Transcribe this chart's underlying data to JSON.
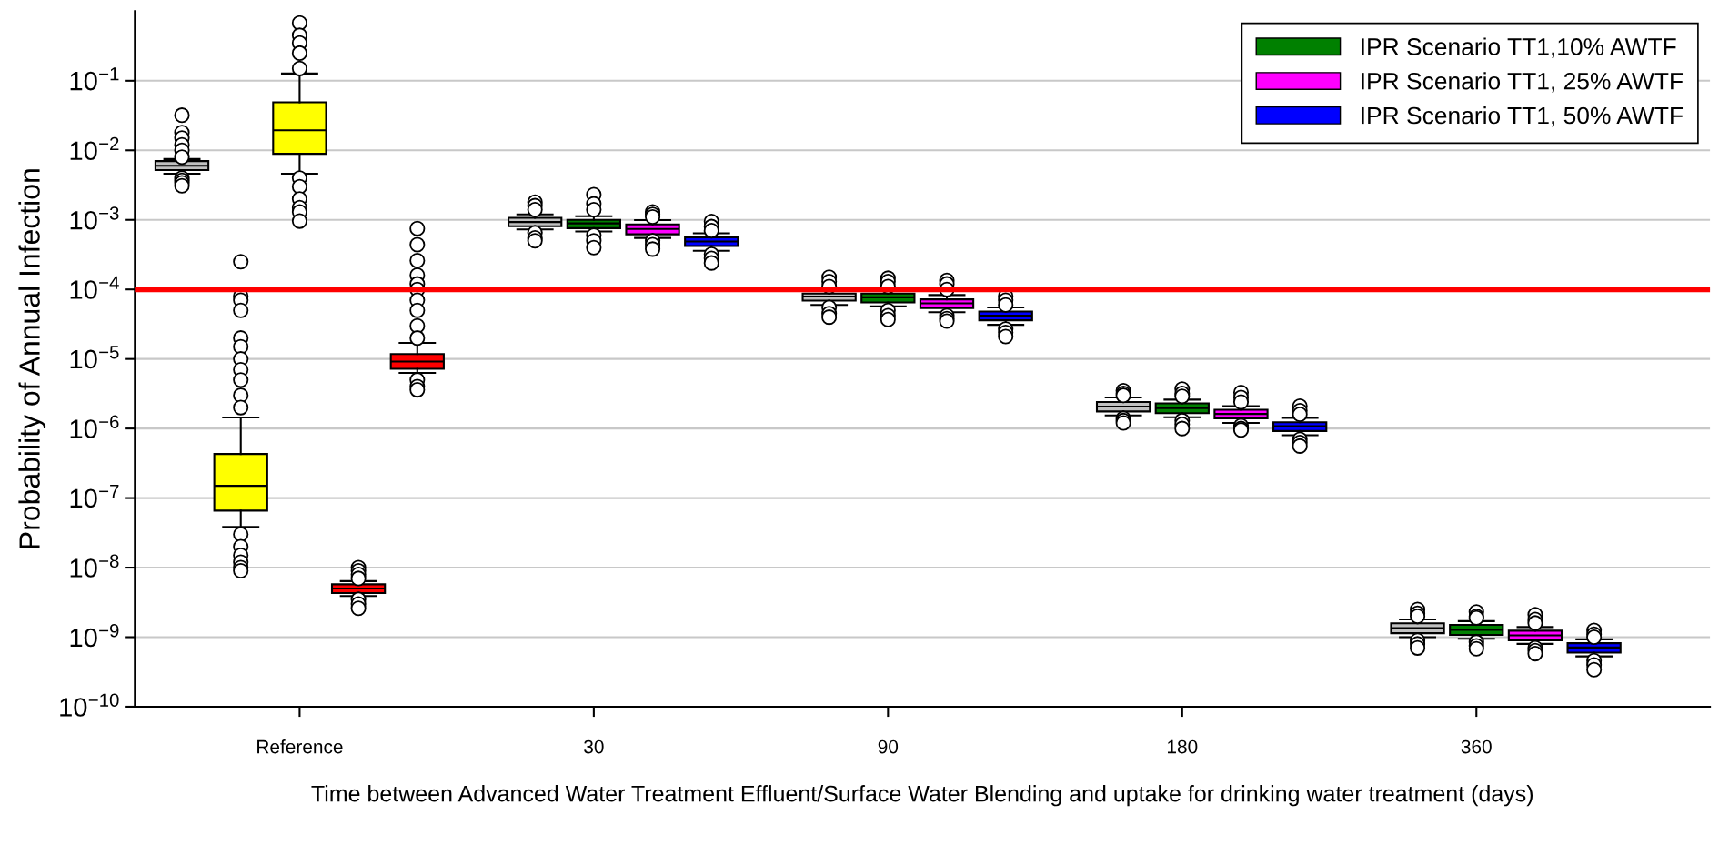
{
  "chart_data": {
    "type": "box",
    "xlabel": "Time between Advanced Water Treatment Effluent/Surface Water Blending and uptake for drinking water treatment (days)",
    "ylabel": "Probability of Annual Infection",
    "categories": [
      null,
      null,
      "Reference",
      null,
      null,
      null,
      null,
      "30",
      null,
      null,
      null,
      null,
      "90",
      null,
      null,
      null,
      null,
      "180",
      null,
      null,
      null,
      null,
      "360",
      null,
      null
    ],
    "log": "y",
    "ylim": [
      1e-10,
      1
    ],
    "yticks": [
      {
        "value": 1e-10,
        "label": "10$^{−10}$"
      },
      {
        "value": 1e-09,
        "label": "10$^{−9}$"
      },
      {
        "value": 1e-08,
        "label": "10$^{−8}$"
      },
      {
        "value": 1e-07,
        "label": "10$^{−7}$"
      },
      {
        "value": 1e-06,
        "label": "10$^{−6}$"
      },
      {
        "value": 1e-05,
        "label": "10$^{−5}$"
      },
      {
        "value": 0.0001,
        "label": "10$^{−4}$"
      },
      {
        "value": 0.001,
        "label": "10$^{−3}$"
      },
      {
        "value": 0.01,
        "label": "10$^{−2}$"
      },
      {
        "value": 0.1,
        "label": "10$^{−1}$"
      }
    ],
    "grid": "y",
    "legend": "top right",
    "ref_lines": [
      {
        "axis": "y",
        "value": 0.0001,
        "color": "#ff0000"
      }
    ],
    "series": [
      {
        "color": "#c0c0c0",
        "boxes": [
          {
            "low": 0.0046,
            "q1": 0.0052,
            "median": 0.006,
            "q3": 0.007,
            "high": 0.0075,
            "outliers": [
              0.032,
              0.018,
              0.015,
              0.012,
              0.01,
              0.008,
              0.004,
              0.0037,
              0.0034,
              0.0031
            ]
          },
          null,
          null,
          null,
          null,
          null,
          {
            "low": 0.00073,
            "q1": 0.00081,
            "median": 0.00093,
            "q3": 0.00107,
            "high": 0.0012,
            "outliers": [
              0.0018,
              0.0016,
              0.0014,
              0.00065,
              0.00055,
              0.0005
            ]
          },
          null,
          null,
          null,
          null,
          {
            "low": 6e-05,
            "q1": 6.9e-05,
            "median": 7.9e-05,
            "q3": 8.7e-05,
            "high": 0.0001,
            "outliers": [
              0.00015,
              0.00013,
              0.00011,
              5.5e-05,
              4.5e-05,
              4e-05
            ]
          },
          null,
          null,
          null,
          null,
          {
            "low": 1.54e-06,
            "q1": 1.76e-06,
            "median": 2.07e-06,
            "q3": 2.4e-06,
            "high": 2.8e-06,
            "outliers": [
              3.5e-06,
              3.2e-06,
              3e-06,
              1.4e-06,
              1.3e-06,
              1.2e-06
            ]
          },
          null,
          null,
          null,
          null,
          {
            "low": 1e-09,
            "q1": 1.14e-09,
            "median": 1.35e-09,
            "q3": 1.58e-09,
            "high": 1.8e-09,
            "outliers": [
              2.5e-09,
              2.2e-09,
              2e-09,
              9e-10,
              8e-10,
              7e-10
            ]
          },
          null,
          null,
          null
        ]
      },
      {
        "color": "#ffff00",
        "boxes": [
          null,
          {
            "low": 3.85e-08,
            "q1": 6.6e-08,
            "median": 1.5e-07,
            "q3": 4.3e-07,
            "high": 1.44e-06,
            "outliers": [
              0.00025,
              8e-05,
              7e-05,
              5e-05,
              2e-05,
              1.5e-05,
              1e-05,
              7e-06,
              5e-06,
              3e-06,
              2e-06,
              3e-08,
              2e-08,
              1.5e-08,
              1.2e-08,
              1e-08,
              9e-09
            ]
          },
          {
            "low": 0.0046,
            "q1": 0.0089,
            "median": 0.0194,
            "q3": 0.049,
            "high": 0.127,
            "outliers": [
              0.68,
              0.45,
              0.35,
              0.25,
              0.15,
              0.004,
              0.003,
              0.002,
              0.0015,
              0.0013,
              0.00096
            ]
          },
          null,
          null,
          null,
          null,
          null,
          null,
          null,
          null,
          null,
          null,
          null,
          null,
          null,
          null,
          null,
          null,
          null,
          null,
          null,
          null,
          null,
          null
        ]
      },
      {
        "color": "#ff0000",
        "boxes": [
          null,
          null,
          null,
          {
            "low": 3.9e-09,
            "q1": 4.3e-09,
            "median": 5e-09,
            "q3": 5.76e-09,
            "high": 6.4e-09,
            "outliers": [
              1e-08,
              9e-09,
              8e-09,
              7e-09,
              3.5e-09,
              3e-09,
              2.6e-09
            ]
          },
          {
            "low": 6.3e-06,
            "q1": 7.2e-06,
            "median": 9.2e-06,
            "q3": 1.18e-05,
            "high": 1.7e-05,
            "outliers": [
              0.00075,
              0.00044,
              0.00026,
              0.00016,
              0.00012,
              0.0001,
              7e-05,
              5e-05,
              3e-05,
              2e-05,
              5e-06,
              4e-06,
              3.6e-06
            ]
          },
          null,
          null,
          null,
          null,
          null,
          null,
          null,
          null,
          null,
          null,
          null,
          null,
          null,
          null,
          null,
          null,
          null,
          null,
          null,
          null
        ]
      },
      {
        "name": "IPR Scenario TT1,10% AWTF",
        "color": "#008000",
        "boxes": [
          null,
          null,
          null,
          null,
          null,
          null,
          null,
          {
            "low": 0.00068,
            "q1": 0.00076,
            "median": 0.00089,
            "q3": 0.001,
            "high": 0.00113,
            "outliers": [
              0.0023,
              0.0017,
              0.0014,
              0.0006,
              0.0005,
              0.0004
            ]
          },
          null,
          null,
          null,
          null,
          {
            "low": 5.7e-05,
            "q1": 6.5e-05,
            "median": 7.7e-05,
            "q3": 8.7e-05,
            "high": 0.0001,
            "outliers": [
              0.000145,
              0.00013,
              0.00011,
              5e-05,
              4.2e-05,
              3.7e-05
            ]
          },
          null,
          null,
          null,
          null,
          {
            "low": 1.45e-06,
            "q1": 1.66e-06,
            "median": 1.96e-06,
            "q3": 2.3e-06,
            "high": 2.6e-06,
            "outliers": [
              3.7e-06,
              3.2e-06,
              2.9e-06,
              1.3e-06,
              1.15e-06,
              1e-06
            ]
          },
          null,
          null,
          null,
          null,
          {
            "low": 9.5e-10,
            "q1": 1.08e-09,
            "median": 1.27e-09,
            "q3": 1.5e-09,
            "high": 1.7e-09,
            "outliers": [
              2.3e-09,
              2e-09,
              1.9e-09,
              8.5e-10,
              7.5e-10,
              6.8e-10
            ]
          },
          null,
          null
        ]
      },
      {
        "name": "IPR Scenario TT1, 25% AWTF",
        "color": "#ff00ff",
        "boxes": [
          null,
          null,
          null,
          null,
          null,
          null,
          null,
          null,
          {
            "low": 0.00055,
            "q1": 0.00062,
            "median": 0.00074,
            "q3": 0.00086,
            "high": 0.00099,
            "outliers": [
              0.0013,
              0.0012,
              0.0011,
              0.0005,
              0.00044,
              0.00038
            ]
          },
          null,
          null,
          null,
          null,
          {
            "low": 4.7e-05,
            "q1": 5.4e-05,
            "median": 6.3e-05,
            "q3": 7.2e-05,
            "high": 8.3e-05,
            "outliers": [
              0.000135,
              0.00012,
              0.0001,
              4.2e-05,
              3.8e-05,
              3.5e-05
            ]
          },
          null,
          null,
          null,
          null,
          {
            "low": 1.2e-06,
            "q1": 1.4e-06,
            "median": 1.62e-06,
            "q3": 1.86e-06,
            "high": 2.1e-06,
            "outliers": [
              3.3e-06,
              2.8e-06,
              2.4e-06,
              1.1e-06,
              1e-06,
              9.5e-07
            ]
          },
          null,
          null,
          null,
          null,
          {
            "low": 8e-10,
            "q1": 9e-10,
            "median": 1.06e-09,
            "q3": 1.24e-09,
            "high": 1.4e-09,
            "outliers": [
              2.1e-09,
              1.8e-09,
              1.6e-09,
              7e-10,
              6.4e-10,
              5.8e-10
            ]
          },
          null
        ]
      },
      {
        "name": "IPR Scenario TT1, 50% AWTF",
        "color": "#0000ff",
        "boxes": [
          null,
          null,
          null,
          null,
          null,
          null,
          null,
          null,
          null,
          {
            "low": 0.00036,
            "q1": 0.00042,
            "median": 0.00049,
            "q3": 0.00056,
            "high": 0.00064,
            "outliers": [
              0.00095,
              0.0008,
              0.0007,
              0.00032,
              0.00028,
              0.00024
            ]
          },
          null,
          null,
          null,
          null,
          {
            "low": 3.1e-05,
            "q1": 3.6e-05,
            "median": 4.2e-05,
            "q3": 4.8e-05,
            "high": 5.5e-05,
            "outliers": [
              8e-05,
              7e-05,
              6e-05,
              2.7e-05,
              2.4e-05,
              2.1e-05
            ]
          },
          null,
          null,
          null,
          null,
          {
            "low": 8e-07,
            "q1": 9.2e-07,
            "median": 1.08e-06,
            "q3": 1.23e-06,
            "high": 1.42e-06,
            "outliers": [
              2.1e-06,
              1.8e-06,
              1.6e-06,
              7e-07,
              6.3e-07,
              5.6e-07
            ]
          },
          null,
          null,
          null,
          null,
          {
            "low": 5.3e-10,
            "q1": 6e-10,
            "median": 7.1e-10,
            "q3": 8.2e-10,
            "high": 9.3e-10,
            "outliers": [
              1.25e-09,
              1.1e-09,
              1e-09,
              4.6e-10,
              4e-10,
              3.4e-10
            ]
          }
        ]
      }
    ]
  }
}
